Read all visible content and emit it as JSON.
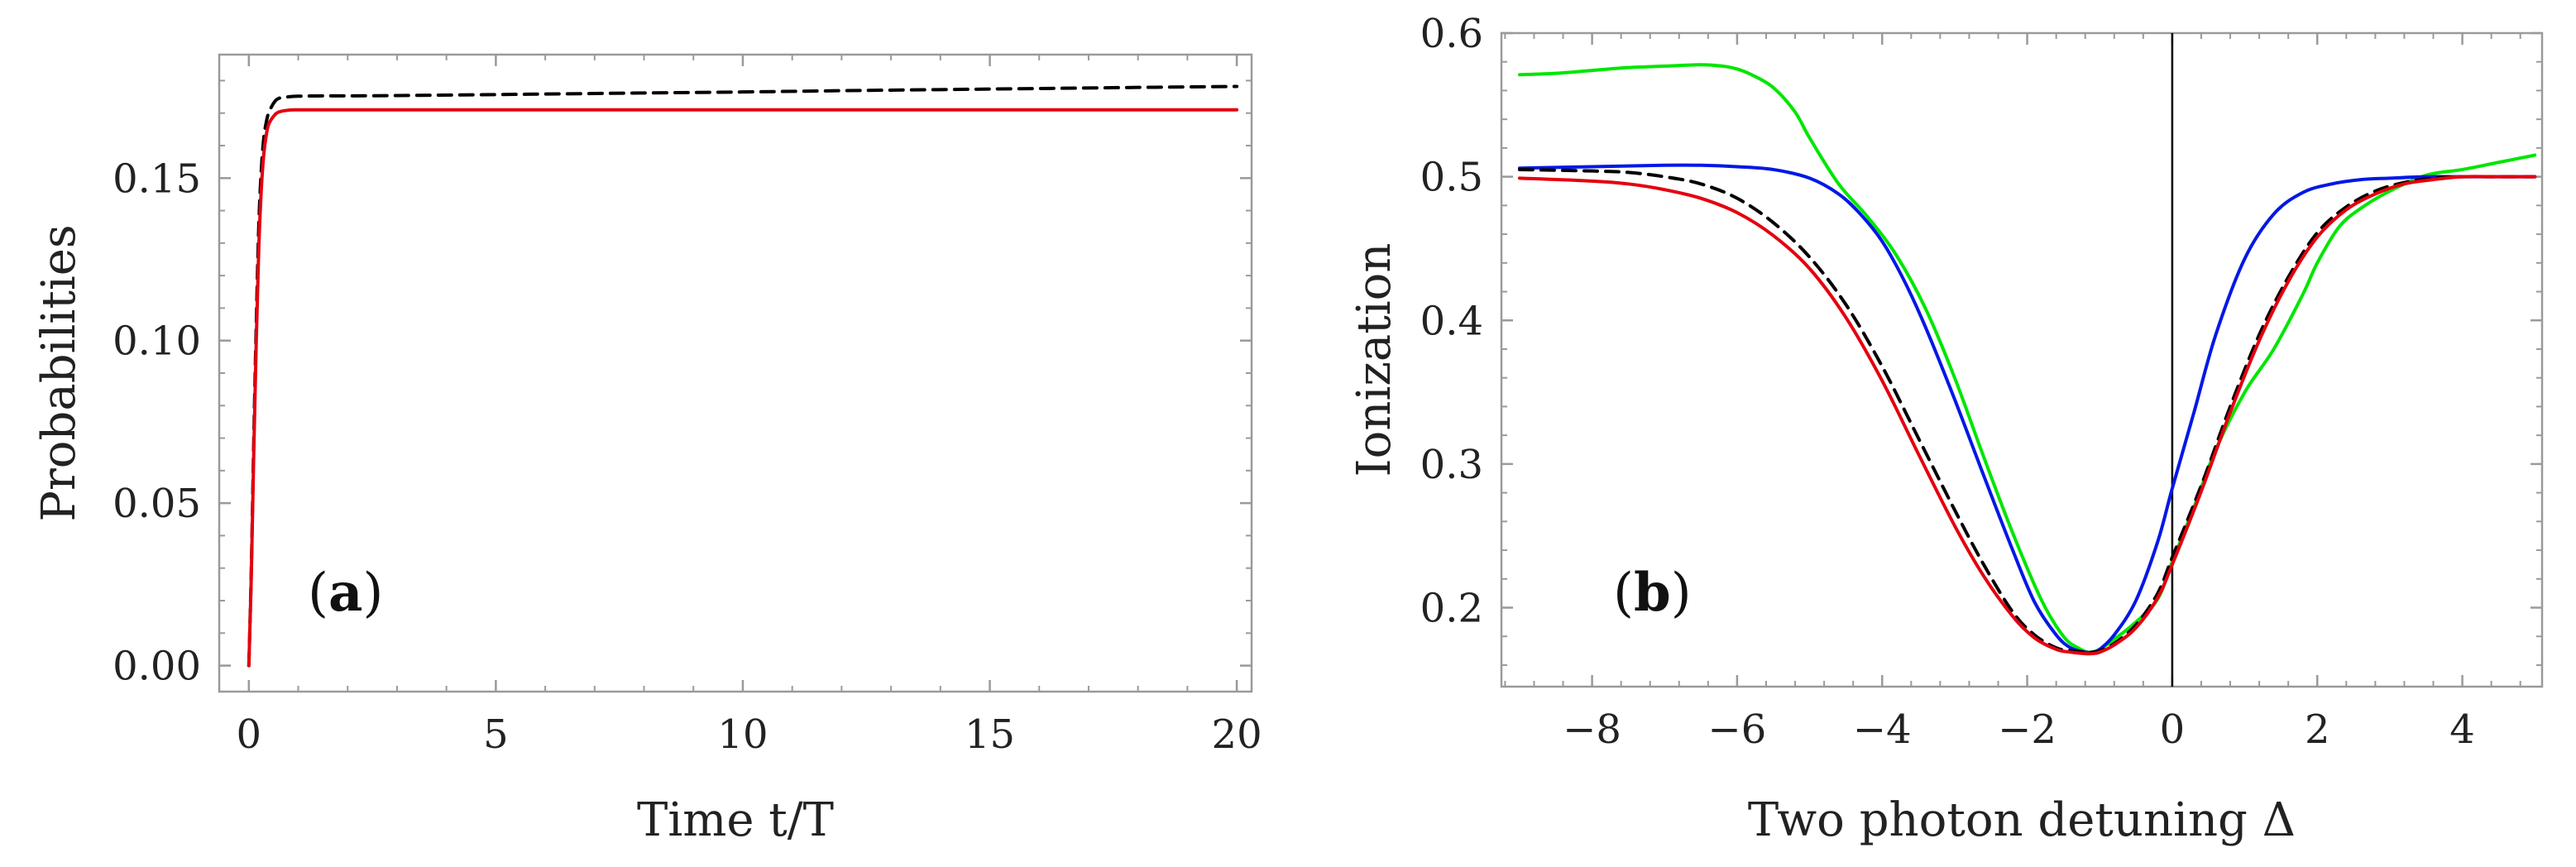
{
  "chart_data": [
    {
      "type": "line",
      "panel_label": "(a)",
      "panel_label_letter": "a",
      "xlabel": "Time t/T",
      "ylabel": "Probabilities",
      "xlim": [
        -0.6,
        20.3
      ],
      "ylim": [
        -0.008,
        0.188
      ],
      "xticks": [
        0,
        5,
        10,
        15,
        20
      ],
      "xtick_labels": [
        "0",
        "5",
        "10",
        "15",
        "20"
      ],
      "yticks": [
        0.0,
        0.05,
        0.1,
        0.15
      ],
      "ytick_labels": [
        "0.00",
        "0.05",
        "0.10",
        "0.15"
      ],
      "series": [
        {
          "name": "dashed-black",
          "color": "#000000",
          "dashed": true,
          "x": [
            0,
            0.05,
            0.1,
            0.15,
            0.2,
            0.25,
            0.3,
            0.35,
            0.4,
            0.5,
            0.6,
            0.8,
            1.0,
            1.5,
            2,
            3,
            5,
            8,
            10,
            12,
            15,
            18,
            20
          ],
          "y": [
            0.0,
            0.03,
            0.07,
            0.105,
            0.135,
            0.152,
            0.162,
            0.167,
            0.17,
            0.173,
            0.1745,
            0.175,
            0.1752,
            0.1753,
            0.1753,
            0.1754,
            0.1757,
            0.1762,
            0.1765,
            0.1769,
            0.1774,
            0.1779,
            0.1782
          ]
        },
        {
          "name": "solid-red",
          "color": "#e4000f",
          "dashed": false,
          "x": [
            0,
            0.05,
            0.1,
            0.15,
            0.2,
            0.25,
            0.3,
            0.35,
            0.4,
            0.5,
            0.6,
            0.8,
            1.0,
            1.5,
            2,
            5,
            10,
            15,
            20
          ],
          "y": [
            0.0,
            0.028,
            0.066,
            0.1,
            0.128,
            0.146,
            0.157,
            0.163,
            0.1665,
            0.169,
            0.1703,
            0.1709,
            0.171,
            0.171,
            0.171,
            0.171,
            0.171,
            0.171,
            0.171
          ]
        }
      ]
    },
    {
      "type": "line",
      "panel_label": "(b)",
      "panel_label_letter": "b",
      "xlabel": "Two photon detuning Δ",
      "ylabel": "Ionization",
      "xlim": [
        -9.25,
        5.1
      ],
      "ylim": [
        0.145,
        0.6
      ],
      "xticks": [
        -8,
        -6,
        -4,
        -2,
        0,
        2,
        4
      ],
      "xtick_labels": [
        "−8",
        "−6",
        "−4",
        "−2",
        "0",
        "2",
        "4"
      ],
      "yticks": [
        0.2,
        0.3,
        0.4,
        0.5,
        0.6
      ],
      "ytick_labels": [
        "0.2",
        "0.3",
        "0.4",
        "0.5",
        "0.6"
      ],
      "vline_x": 0,
      "series": [
        {
          "name": "green",
          "color": "#00e600",
          "dashed": false,
          "x": [
            -9,
            -8.5,
            -8,
            -7.5,
            -7,
            -6.5,
            -6.2,
            -6,
            -5.8,
            -5.5,
            -5.2,
            -5,
            -4.6,
            -4.2,
            -3.8,
            -3.4,
            -3,
            -2.6,
            -2.2,
            -1.8,
            -1.5,
            -1.3,
            -1.15,
            -1.0,
            -0.8,
            -0.5,
            -0.2,
            0,
            0.3,
            0.6,
            1.0,
            1.4,
            1.8,
            2.0,
            2.3,
            2.6,
            3.0,
            3.5,
            4.0,
            4.5,
            5.0
          ],
          "y": [
            0.571,
            0.572,
            0.574,
            0.576,
            0.577,
            0.578,
            0.577,
            0.575,
            0.571,
            0.562,
            0.545,
            0.527,
            0.495,
            0.472,
            0.445,
            0.408,
            0.36,
            0.305,
            0.252,
            0.205,
            0.18,
            0.172,
            0.169,
            0.171,
            0.178,
            0.19,
            0.206,
            0.232,
            0.27,
            0.31,
            0.35,
            0.38,
            0.418,
            0.44,
            0.465,
            0.478,
            0.49,
            0.501,
            0.505,
            0.51,
            0.515
          ]
        },
        {
          "name": "blue",
          "color": "#0018e6",
          "dashed": false,
          "x": [
            -9,
            -8,
            -7,
            -6.5,
            -6,
            -5.5,
            -5,
            -4.6,
            -4.3,
            -4,
            -3.7,
            -3.4,
            -3,
            -2.6,
            -2.2,
            -1.9,
            -1.6,
            -1.4,
            -1.2,
            -1.1,
            -1.0,
            -0.8,
            -0.5,
            -0.2,
            0,
            0.3,
            0.6,
            1.0,
            1.4,
            1.8,
            2.2,
            2.6,
            3.0,
            3.5,
            4.0,
            4.5,
            5.0
          ],
          "y": [
            0.506,
            0.507,
            0.508,
            0.508,
            0.507,
            0.505,
            0.499,
            0.488,
            0.474,
            0.455,
            0.428,
            0.395,
            0.345,
            0.292,
            0.24,
            0.204,
            0.181,
            0.172,
            0.169,
            0.169,
            0.171,
            0.181,
            0.205,
            0.246,
            0.283,
            0.336,
            0.39,
            0.443,
            0.474,
            0.489,
            0.495,
            0.498,
            0.499,
            0.5,
            0.5,
            0.5,
            0.5
          ]
        },
        {
          "name": "dashed-black",
          "color": "#000000",
          "dashed": true,
          "x": [
            -9,
            -8,
            -7.5,
            -7,
            -6.5,
            -6,
            -5.5,
            -5,
            -4.5,
            -4,
            -3.5,
            -3,
            -2.6,
            -2.2,
            -1.9,
            -1.6,
            -1.4,
            -1.2,
            -1.1,
            -1.0,
            -0.8,
            -0.5,
            -0.2,
            0,
            0.4,
            0.8,
            1.2,
            1.6,
            2.0,
            2.4,
            2.8,
            3.2,
            3.6,
            4.0,
            4.5,
            5.0
          ],
          "y": [
            0.505,
            0.504,
            0.503,
            0.5,
            0.495,
            0.485,
            0.468,
            0.444,
            0.411,
            0.368,
            0.318,
            0.268,
            0.23,
            0.197,
            0.181,
            0.172,
            0.17,
            0.169,
            0.169,
            0.17,
            0.175,
            0.188,
            0.21,
            0.235,
            0.285,
            0.34,
            0.39,
            0.43,
            0.461,
            0.479,
            0.49,
            0.496,
            0.499,
            0.5,
            0.5,
            0.5
          ]
        },
        {
          "name": "red",
          "color": "#e4000f",
          "dashed": false,
          "x": [
            -9,
            -8,
            -7.5,
            -7,
            -6.5,
            -6,
            -5.5,
            -5,
            -4.5,
            -4,
            -3.5,
            -3,
            -2.6,
            -2.2,
            -1.9,
            -1.6,
            -1.4,
            -1.2,
            -1.1,
            -1.0,
            -0.8,
            -0.5,
            -0.2,
            0,
            0.4,
            0.8,
            1.2,
            1.6,
            2.0,
            2.4,
            2.8,
            3.2,
            3.6,
            4.0,
            4.5,
            5.0
          ],
          "y": [
            0.499,
            0.497,
            0.495,
            0.491,
            0.485,
            0.475,
            0.459,
            0.436,
            0.402,
            0.358,
            0.307,
            0.257,
            0.222,
            0.194,
            0.179,
            0.171,
            0.169,
            0.168,
            0.168,
            0.169,
            0.174,
            0.186,
            0.207,
            0.23,
            0.281,
            0.336,
            0.386,
            0.427,
            0.458,
            0.477,
            0.488,
            0.495,
            0.498,
            0.5,
            0.5,
            0.5
          ]
        }
      ]
    }
  ]
}
